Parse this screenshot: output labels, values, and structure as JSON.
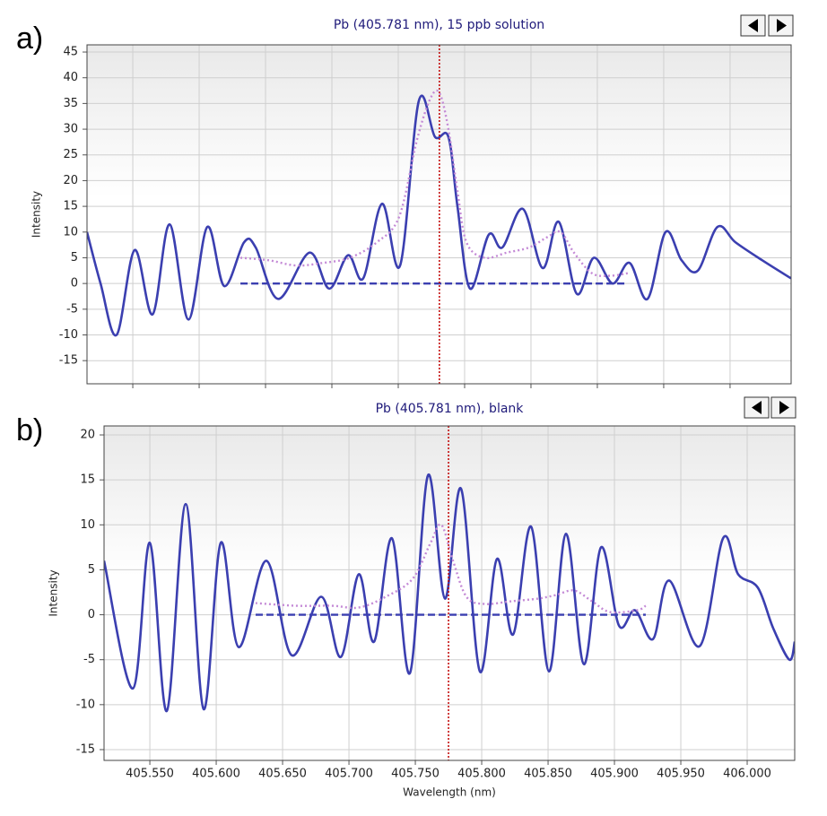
{
  "chart_data": [
    {
      "type": "line",
      "panel_label": "a)",
      "title": "Pb (405.781 nm), 15 ppb solution",
      "ylabel": "Intensity",
      "xlim": [
        405.5155,
        406.046
      ],
      "xticks": [
        405.55,
        405.6,
        405.65,
        405.7,
        405.75,
        405.8,
        405.85,
        405.9,
        405.95,
        406.0
      ],
      "xtick_labels_shown": false,
      "ylim": [
        -19.5,
        46.4
      ],
      "yticks": [
        45,
        40,
        35,
        30,
        25,
        20,
        15,
        10,
        5,
        0,
        -5,
        -10,
        -15
      ],
      "grid": true,
      "marker_x": 405.781,
      "marker_color": "#c00000",
      "series": [
        {
          "color": "#3b3fb0",
          "style": "solid",
          "x": [
            405.5155,
            405.5257,
            405.5378,
            405.5514,
            405.5649,
            405.5777,
            405.5919,
            405.6061,
            405.6189,
            405.6338,
            405.6426,
            405.6595,
            405.6831,
            405.698,
            405.7122,
            405.7236,
            405.7378,
            405.7514,
            405.7655,
            405.7777,
            405.7878,
            405.7946,
            405.8041,
            405.8182,
            405.8284,
            405.8439,
            405.8588,
            405.8709,
            405.8845,
            405.8973,
            405.9115,
            405.9243,
            405.9378,
            405.9514,
            405.9635,
            405.9757,
            405.9905,
            406.0041,
            406.0243,
            406.0459
          ],
          "values": [
            10,
            0,
            -10,
            6.5,
            -6,
            11.5,
            -7,
            11,
            -0.5,
            8,
            7,
            -3,
            6,
            -1,
            5.5,
            1,
            15.5,
            3.5,
            35.5,
            28.5,
            28.5,
            15,
            -1,
            9.5,
            7,
            14.5,
            3,
            12,
            -2,
            5,
            0,
            4,
            -3,
            10,
            4.5,
            2.5,
            11,
            8,
            4.5,
            1
          ]
        },
        {
          "color": "#c48ad6",
          "style": "dotted",
          "x": [
            405.6311,
            405.6527,
            405.673,
            405.6932,
            405.7135,
            405.7338,
            405.7507,
            405.7642,
            405.7743,
            405.7811,
            405.7878,
            405.7946,
            405.8014,
            405.8149,
            405.8318,
            405.8486,
            405.8622,
            405.8723,
            405.8824,
            405.8959,
            405.9095,
            405.923
          ],
          "values": [
            5,
            4.5,
            3.5,
            4,
            5,
            8,
            13,
            28,
            36,
            37,
            30,
            18,
            8,
            5,
            6,
            7,
            9,
            10,
            6,
            2,
            1.5,
            2
          ]
        },
        {
          "color": "#3b3fb0",
          "style": "dashed",
          "x": [
            405.6311,
            405.923
          ],
          "values": [
            0,
            0
          ]
        }
      ]
    },
    {
      "type": "line",
      "panel_label": "b)",
      "title": "Pb (405.781 nm), blank",
      "ylabel": "Intensity",
      "xlabel": "Wavelength (nm)",
      "xlim": [
        405.5155,
        406.0358
      ],
      "xticks": [
        {
          "value": 405.55,
          "label": "405.550"
        },
        {
          "value": 405.6,
          "label": "405.600"
        },
        {
          "value": 405.65,
          "label": "405.650"
        },
        {
          "value": 405.7,
          "label": "405.700"
        },
        {
          "value": 405.75,
          "label": "405.750"
        },
        {
          "value": 405.8,
          "label": "405.800"
        },
        {
          "value": 405.85,
          "label": "405.850"
        },
        {
          "value": 405.9,
          "label": "405.900"
        },
        {
          "value": 405.95,
          "label": "405.950"
        },
        {
          "value": 406.0,
          "label": "406.000"
        }
      ],
      "xtick_labels_shown": true,
      "ylim": [
        -16.2,
        21
      ],
      "yticks": [
        20,
        15,
        10,
        5,
        0,
        -5,
        -10,
        -15
      ],
      "grid": true,
      "marker_x": 405.775,
      "marker_color": "#c00000",
      "series": [
        {
          "color": "#3b3fb0",
          "style": "solid",
          "x": [
            405.5155,
            405.5372,
            405.55,
            405.5628,
            405.577,
            405.5905,
            405.6034,
            405.6169,
            405.6378,
            405.6568,
            405.6791,
            405.6939,
            405.7074,
            405.7189,
            405.7324,
            405.7459,
            405.7595,
            405.7723,
            405.7845,
            405.7986,
            405.8115,
            405.8236,
            405.8372,
            405.8507,
            405.8635,
            405.877,
            405.8899,
            405.9034,
            405.9155,
            405.9291,
            405.9412,
            405.9642,
            405.9818,
            405.9932,
            406.0081,
            406.0196,
            406.0318,
            406.0358
          ],
          "values": [
            6,
            -8.2,
            8,
            -10.7,
            12.3,
            -10.5,
            8,
            -3.6,
            6,
            -4.5,
            2,
            -4.7,
            4.5,
            -3,
            8.5,
            -6.5,
            15.5,
            1.8,
            14,
            -6.3,
            6.2,
            -2.2,
            9.8,
            -6.3,
            9,
            -5.5,
            7.5,
            -1.2,
            0.5,
            -2.7,
            3.8,
            -3.5,
            8.5,
            4.5,
            3,
            -1.5,
            -5,
            -3
          ]
        },
        {
          "color": "#c48ad6",
          "style": "dotted",
          "x": [
            405.6297,
            405.6601,
            405.6872,
            405.7074,
            405.7277,
            405.748,
            405.7615,
            405.7696,
            405.7784,
            405.7885,
            405.802,
            405.8223,
            405.8426,
            405.8561,
            405.8696,
            405.8831,
            405.8966,
            405.9169,
            405.9236
          ],
          "values": [
            1.3,
            1,
            1,
            0.8,
            2,
            4,
            8,
            10,
            6,
            2,
            1.2,
            1.5,
            1.8,
            2.2,
            2.7,
            1.5,
            0.3,
            0.5,
            1
          ]
        },
        {
          "color": "#3b3fb0",
          "style": "dashed",
          "x": [
            405.6297,
            405.9236
          ],
          "values": [
            0,
            0
          ]
        }
      ]
    }
  ]
}
